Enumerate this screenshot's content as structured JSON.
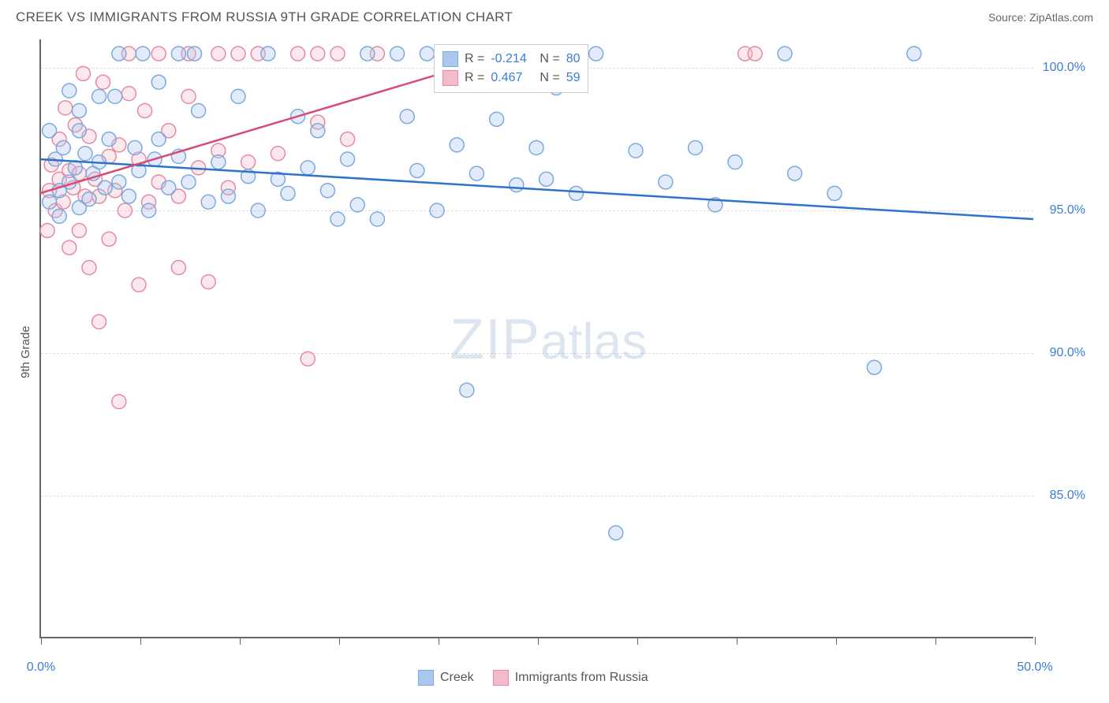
{
  "header": {
    "title": "CREEK VS IMMIGRANTS FROM RUSSIA 9TH GRADE CORRELATION CHART",
    "source_label": "Source: ",
    "source_value": "ZipAtlas.com"
  },
  "chart": {
    "type": "scatter",
    "yaxis_title": "9th Grade",
    "background_color": "#ffffff",
    "grid_color": "#dddddd",
    "axis_color": "#666666",
    "xlim": [
      0,
      50
    ],
    "ylim": [
      80,
      101
    ],
    "xticks": [
      0,
      5,
      10,
      15,
      20,
      25,
      30,
      35,
      40,
      45,
      50
    ],
    "xtick_labels": {
      "0": "0.0%",
      "50": "50.0%"
    },
    "xtick_label_color": "#3b7dd8",
    "yticks": [
      85,
      90,
      95,
      100
    ],
    "ytick_labels": [
      "85.0%",
      "90.0%",
      "95.0%",
      "100.0%"
    ],
    "ytick_label_color": "#3b7dd8",
    "marker_radius": 9,
    "marker_fill_opacity": 0.35,
    "marker_stroke_width": 1.5,
    "line_width": 2.5,
    "watermark": {
      "text_bold": "ZIP",
      "text_light": "atlas"
    }
  },
  "series": {
    "creek": {
      "label": "Creek",
      "color_fill": "#a9c7ef",
      "color_stroke": "#7da9dd",
      "line_color": "#2e72c9",
      "trend": {
        "x1": 0,
        "y1": 96.8,
        "x2": 50,
        "y2": 94.7
      },
      "points": [
        [
          0.5,
          95.3
        ],
        [
          0.8,
          96.8
        ],
        [
          1.0,
          95.7
        ],
        [
          1.2,
          97.2
        ],
        [
          1.5,
          96.0
        ],
        [
          1.5,
          99.2
        ],
        [
          1.8,
          96.5
        ],
        [
          2.0,
          95.1
        ],
        [
          2.0,
          97.8
        ],
        [
          2.3,
          97.0
        ],
        [
          2.5,
          95.4
        ],
        [
          2.7,
          96.3
        ],
        [
          3.0,
          96.7
        ],
        [
          3.0,
          99.0
        ],
        [
          3.3,
          95.8
        ],
        [
          3.5,
          97.5
        ],
        [
          3.8,
          99.0
        ],
        [
          4.0,
          96.0
        ],
        [
          4.0,
          100.5
        ],
        [
          4.5,
          95.5
        ],
        [
          4.8,
          97.2
        ],
        [
          5.0,
          96.4
        ],
        [
          5.2,
          100.5
        ],
        [
          5.5,
          95.0
        ],
        [
          5.8,
          96.8
        ],
        [
          6.0,
          99.5
        ],
        [
          6.0,
          97.5
        ],
        [
          6.5,
          95.8
        ],
        [
          7.0,
          96.9
        ],
        [
          7.0,
          100.5
        ],
        [
          7.5,
          96.0
        ],
        [
          7.8,
          100.5
        ],
        [
          8.0,
          98.5
        ],
        [
          8.5,
          95.3
        ],
        [
          9.0,
          96.7
        ],
        [
          9.5,
          95.5
        ],
        [
          10.0,
          99.0
        ],
        [
          10.5,
          96.2
        ],
        [
          11.0,
          95.0
        ],
        [
          11.5,
          100.5
        ],
        [
          12.0,
          96.1
        ],
        [
          12.5,
          95.6
        ],
        [
          13.0,
          98.3
        ],
        [
          13.5,
          96.5
        ],
        [
          14.0,
          97.8
        ],
        [
          14.5,
          95.7
        ],
        [
          15.0,
          94.7
        ],
        [
          15.5,
          96.8
        ],
        [
          16.0,
          95.2
        ],
        [
          16.5,
          100.5
        ],
        [
          17.0,
          94.7
        ],
        [
          18.0,
          100.5
        ],
        [
          18.5,
          98.3
        ],
        [
          19.0,
          96.4
        ],
        [
          19.5,
          100.5
        ],
        [
          20.0,
          95.0
        ],
        [
          21.0,
          97.3
        ],
        [
          21.5,
          88.7
        ],
        [
          22.0,
          96.3
        ],
        [
          23.0,
          98.2
        ],
        [
          24.0,
          95.9
        ],
        [
          25.0,
          97.2
        ],
        [
          25.5,
          96.1
        ],
        [
          26.0,
          99.3
        ],
        [
          27.0,
          95.6
        ],
        [
          28.0,
          100.5
        ],
        [
          29.0,
          83.7
        ],
        [
          30.0,
          97.1
        ],
        [
          31.5,
          96.0
        ],
        [
          33.0,
          97.2
        ],
        [
          34.0,
          95.2
        ],
        [
          35.0,
          96.7
        ],
        [
          37.5,
          100.5
        ],
        [
          38.0,
          96.3
        ],
        [
          40.0,
          95.6
        ],
        [
          42.0,
          89.5
        ],
        [
          44.0,
          100.5
        ],
        [
          0.5,
          97.8
        ],
        [
          1.0,
          94.8
        ],
        [
          2.0,
          98.5
        ]
      ]
    },
    "russia": {
      "label": "Immigrants from Russia",
      "color_fill": "#f4bccb",
      "color_stroke": "#e58aa4",
      "line_color": "#d94a72",
      "trend": {
        "x1": 0,
        "y1": 95.6,
        "x2": 25,
        "y2": 100.8
      },
      "points": [
        [
          0.5,
          95.7
        ],
        [
          0.6,
          96.6
        ],
        [
          0.8,
          95.0
        ],
        [
          1.0,
          96.1
        ],
        [
          1.0,
          97.5
        ],
        [
          1.2,
          95.3
        ],
        [
          1.3,
          98.6
        ],
        [
          1.5,
          93.7
        ],
        [
          1.5,
          96.4
        ],
        [
          1.7,
          95.8
        ],
        [
          1.8,
          98.0
        ],
        [
          2.0,
          94.3
        ],
        [
          2.0,
          96.3
        ],
        [
          2.2,
          99.8
        ],
        [
          2.3,
          95.5
        ],
        [
          2.5,
          97.6
        ],
        [
          2.5,
          93.0
        ],
        [
          2.8,
          96.1
        ],
        [
          3.0,
          91.1
        ],
        [
          3.0,
          95.5
        ],
        [
          3.2,
          99.5
        ],
        [
          3.5,
          94.0
        ],
        [
          3.5,
          96.9
        ],
        [
          3.8,
          95.7
        ],
        [
          4.0,
          88.3
        ],
        [
          4.0,
          97.3
        ],
        [
          4.3,
          95.0
        ],
        [
          4.5,
          99.1
        ],
        [
          4.5,
          100.5
        ],
        [
          5.0,
          92.4
        ],
        [
          5.0,
          96.8
        ],
        [
          5.3,
          98.5
        ],
        [
          5.5,
          95.3
        ],
        [
          6.0,
          100.5
        ],
        [
          6.0,
          96.0
        ],
        [
          6.5,
          97.8
        ],
        [
          7.0,
          95.5
        ],
        [
          7.0,
          93.0
        ],
        [
          7.5,
          99.0
        ],
        [
          7.5,
          100.5
        ],
        [
          8.0,
          96.5
        ],
        [
          8.5,
          92.5
        ],
        [
          9.0,
          100.5
        ],
        [
          9.0,
          97.1
        ],
        [
          9.5,
          95.8
        ],
        [
          10.0,
          100.5
        ],
        [
          10.5,
          96.7
        ],
        [
          11.0,
          100.5
        ],
        [
          12.0,
          97.0
        ],
        [
          13.0,
          100.5
        ],
        [
          13.5,
          89.8
        ],
        [
          14.0,
          100.5
        ],
        [
          14.0,
          98.1
        ],
        [
          15.0,
          100.5
        ],
        [
          15.5,
          97.5
        ],
        [
          17.0,
          100.5
        ],
        [
          35.5,
          100.5
        ],
        [
          36.0,
          100.5
        ],
        [
          0.4,
          94.3
        ]
      ]
    }
  },
  "stats_box": {
    "rows": [
      {
        "swatch_fill": "#a9c7ef",
        "swatch_stroke": "#7da9dd",
        "r_label": "R =",
        "r_val": "-0.214",
        "n_label": "N =",
        "n_val": "80"
      },
      {
        "swatch_fill": "#f4bccb",
        "swatch_stroke": "#e58aa4",
        "r_label": "R =",
        "r_val": "0.467",
        "n_label": "N =",
        "n_val": "59"
      }
    ]
  },
  "legend": {
    "items": [
      {
        "swatch_fill": "#a9c7ef",
        "swatch_stroke": "#7da9dd",
        "label": "Creek"
      },
      {
        "swatch_fill": "#f4bccb",
        "swatch_stroke": "#e58aa4",
        "label": "Immigrants from Russia"
      }
    ]
  }
}
